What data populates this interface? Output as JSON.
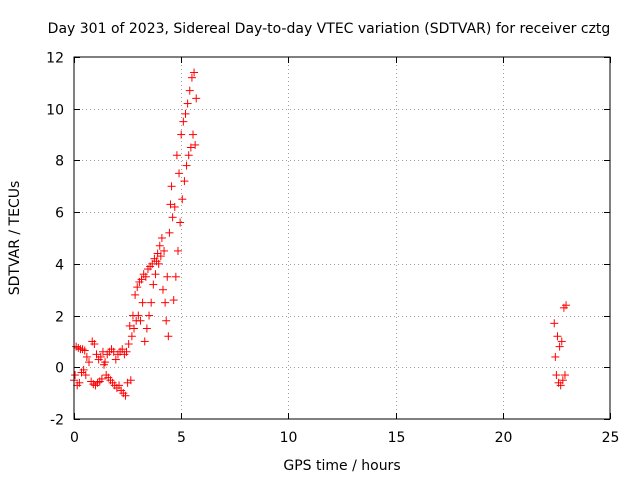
{
  "chart_data": {
    "type": "scatter",
    "title": "Day 301 of 2023, Sidereal Day-to-day VTEC variation (SDTVAR) for receiver cztg",
    "xlabel": "GPS time / hours",
    "ylabel": "SDTVAR / TECUs",
    "xlim": [
      0,
      25
    ],
    "ylim": [
      -2,
      12
    ],
    "xticks": [
      0,
      5,
      10,
      15,
      20,
      25
    ],
    "yticks": [
      -2,
      0,
      2,
      4,
      6,
      8,
      10,
      12
    ],
    "grid": true,
    "marker": "plus",
    "marker_color": "#ff0000",
    "series": [
      {
        "name": "SDTVAR",
        "points": [
          [
            0.0,
            -0.5
          ],
          [
            0.05,
            -0.3
          ],
          [
            0.1,
            0.8
          ],
          [
            0.15,
            -0.7
          ],
          [
            0.2,
            0.75
          ],
          [
            0.25,
            -0.6
          ],
          [
            0.3,
            0.7
          ],
          [
            0.35,
            -0.2
          ],
          [
            0.4,
            0.7
          ],
          [
            0.45,
            -0.1
          ],
          [
            0.5,
            0.65
          ],
          [
            0.55,
            -0.3
          ],
          [
            0.6,
            0.4
          ],
          [
            0.7,
            0.2
          ],
          [
            0.8,
            -0.55
          ],
          [
            0.85,
            1.0
          ],
          [
            0.9,
            -0.65
          ],
          [
            0.95,
            0.9
          ],
          [
            1.0,
            -0.7
          ],
          [
            1.05,
            0.5
          ],
          [
            1.1,
            -0.6
          ],
          [
            1.15,
            0.3
          ],
          [
            1.2,
            -0.55
          ],
          [
            1.25,
            0.4
          ],
          [
            1.3,
            -0.45
          ],
          [
            1.35,
            0.6
          ],
          [
            1.4,
            0.1
          ],
          [
            1.45,
            0.2
          ],
          [
            1.5,
            -0.3
          ],
          [
            1.55,
            0.5
          ],
          [
            1.6,
            -0.4
          ],
          [
            1.65,
            0.6
          ],
          [
            1.7,
            -0.5
          ],
          [
            1.75,
            0.7
          ],
          [
            1.8,
            -0.6
          ],
          [
            1.85,
            0.6
          ],
          [
            1.9,
            -0.7
          ],
          [
            1.95,
            0.3
          ],
          [
            2.0,
            -0.8
          ],
          [
            2.05,
            0.5
          ],
          [
            2.1,
            -0.7
          ],
          [
            2.15,
            0.6
          ],
          [
            2.2,
            -0.9
          ],
          [
            2.25,
            0.7
          ],
          [
            2.3,
            -1.0
          ],
          [
            2.35,
            0.5
          ],
          [
            2.4,
            -1.1
          ],
          [
            2.45,
            0.6
          ],
          [
            2.5,
            -0.6
          ],
          [
            2.55,
            0.9
          ],
          [
            2.6,
            1.6
          ],
          [
            2.65,
            -0.5
          ],
          [
            2.7,
            1.2
          ],
          [
            2.75,
            2.0
          ],
          [
            2.8,
            1.5
          ],
          [
            2.85,
            2.8
          ],
          [
            2.9,
            1.8
          ],
          [
            2.95,
            3.1
          ],
          [
            3.0,
            2.0
          ],
          [
            3.05,
            3.3
          ],
          [
            3.1,
            1.8
          ],
          [
            3.15,
            3.4
          ],
          [
            3.2,
            2.5
          ],
          [
            3.25,
            3.6
          ],
          [
            3.3,
            1.0
          ],
          [
            3.35,
            3.5
          ],
          [
            3.4,
            1.5
          ],
          [
            3.45,
            3.8
          ],
          [
            3.5,
            2.0
          ],
          [
            3.55,
            3.9
          ],
          [
            3.6,
            2.5
          ],
          [
            3.65,
            4.0
          ],
          [
            3.7,
            3.2
          ],
          [
            3.75,
            4.2
          ],
          [
            3.8,
            3.6
          ],
          [
            3.85,
            4.1
          ],
          [
            3.9,
            4.4
          ],
          [
            3.95,
            4.0
          ],
          [
            4.0,
            4.7
          ],
          [
            4.05,
            4.3
          ],
          [
            4.1,
            5.0
          ],
          [
            4.15,
            3.0
          ],
          [
            4.2,
            4.5
          ],
          [
            4.25,
            2.5
          ],
          [
            4.3,
            1.8
          ],
          [
            4.35,
            3.5
          ],
          [
            4.4,
            1.2
          ],
          [
            4.45,
            5.2
          ],
          [
            4.5,
            6.3
          ],
          [
            4.55,
            7.0
          ],
          [
            4.6,
            5.8
          ],
          [
            4.65,
            2.6
          ],
          [
            4.7,
            6.2
          ],
          [
            4.75,
            3.5
          ],
          [
            4.8,
            8.2
          ],
          [
            4.85,
            4.5
          ],
          [
            4.9,
            7.5
          ],
          [
            4.95,
            5.6
          ],
          [
            5.0,
            9.0
          ],
          [
            5.05,
            6.5
          ],
          [
            5.1,
            9.5
          ],
          [
            5.15,
            7.2
          ],
          [
            5.2,
            9.8
          ],
          [
            5.25,
            7.8
          ],
          [
            5.3,
            10.2
          ],
          [
            5.35,
            8.2
          ],
          [
            5.4,
            10.7
          ],
          [
            5.45,
            8.5
          ],
          [
            5.5,
            11.2
          ],
          [
            5.55,
            9.0
          ],
          [
            5.6,
            11.4
          ],
          [
            5.65,
            8.6
          ],
          [
            5.7,
            10.4
          ],
          [
            22.4,
            1.7
          ],
          [
            22.45,
            0.4
          ],
          [
            22.5,
            -0.3
          ],
          [
            22.55,
            1.2
          ],
          [
            22.6,
            -0.6
          ],
          [
            22.65,
            0.8
          ],
          [
            22.7,
            -0.7
          ],
          [
            22.75,
            1.0
          ],
          [
            22.8,
            -0.5
          ],
          [
            22.85,
            2.3
          ],
          [
            22.9,
            -0.3
          ],
          [
            22.95,
            2.4
          ]
        ]
      }
    ]
  }
}
